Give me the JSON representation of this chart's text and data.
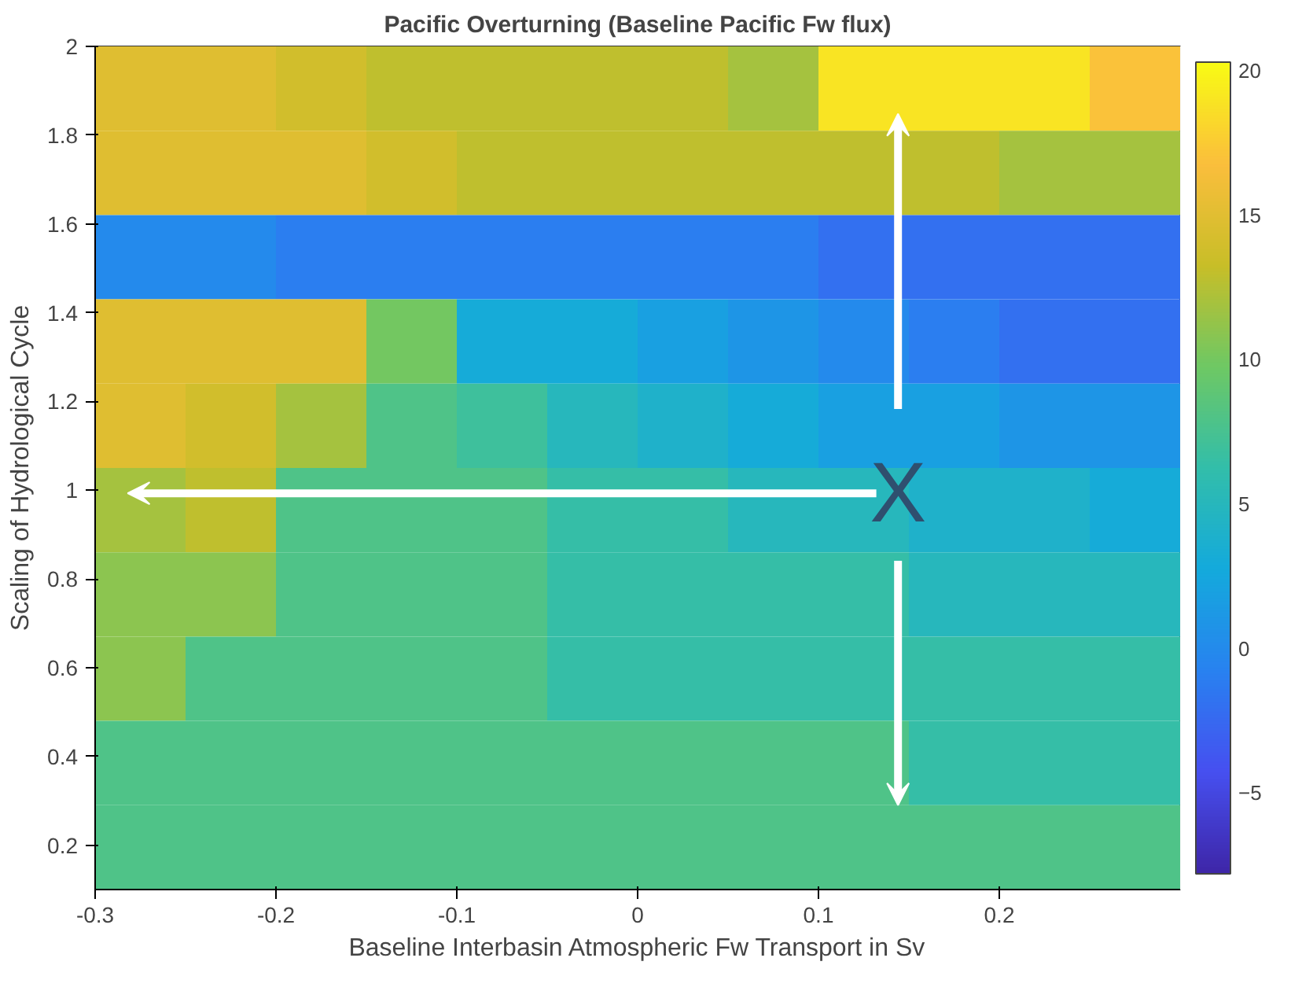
{
  "chart_data": {
    "type": "heatmap",
    "title": "Pacific Overturning (Baseline Pacific Fw flux)",
    "xlabel": "Baseline Interbasin Atmospheric Fw Transport in Sv",
    "ylabel": "Scaling of Hydrological Cycle",
    "x": [
      -0.275,
      -0.225,
      -0.175,
      -0.125,
      -0.075,
      -0.025,
      0.025,
      0.075,
      0.125,
      0.175,
      0.225,
      0.275
    ],
    "y": [
      1.905,
      1.715,
      1.525,
      1.335,
      1.145,
      0.955,
      0.765,
      0.575,
      0.385,
      0.195
    ],
    "cells": [
      [
        15,
        15,
        14,
        13,
        13,
        13,
        13,
        12,
        19,
        19,
        19,
        17
      ],
      [
        15,
        15,
        15,
        14,
        13,
        13,
        13,
        13,
        13,
        13,
        12,
        12
      ],
      [
        0,
        0,
        -1,
        -1,
        -1,
        -1,
        -1,
        -1,
        -2,
        -2,
        -2,
        -2
      ],
      [
        15,
        15,
        15,
        10,
        3,
        3,
        2,
        1,
        0,
        -1,
        -2,
        -2
      ],
      [
        15,
        14,
        12,
        8,
        7,
        5,
        4,
        3,
        2,
        2,
        1,
        1
      ],
      [
        12,
        13,
        8,
        8,
        8,
        6.5,
        6.5,
        5,
        5,
        4,
        4,
        3
      ],
      [
        11,
        11,
        8,
        8,
        8,
        6.5,
        6.5,
        6.5,
        6.5,
        5,
        5,
        5
      ],
      [
        11,
        8,
        8,
        8,
        8,
        6.5,
        6.5,
        6.5,
        6.5,
        6.5,
        6.5,
        6.5
      ],
      [
        8,
        8,
        8,
        8,
        8,
        8,
        8,
        8,
        8,
        6.5,
        6.5,
        6.5
      ],
      [
        8,
        8,
        8,
        8,
        8,
        8,
        8,
        8,
        8,
        8,
        8,
        8
      ]
    ],
    "xlim": [
      -0.3,
      0.3
    ],
    "xticks": [
      -0.3,
      -0.2,
      -0.1,
      0,
      0.1,
      0.2
    ],
    "ylim": [
      0.1,
      2.0
    ],
    "yticks": [
      0.2,
      0.4,
      0.6,
      0.8,
      1,
      1.2,
      1.4,
      1.6,
      1.8,
      2
    ],
    "clim": [
      -7.8,
      20.3
    ],
    "cticks": [
      -5,
      0,
      5,
      10,
      15,
      20
    ],
    "annotations": [
      "X"
    ]
  }
}
